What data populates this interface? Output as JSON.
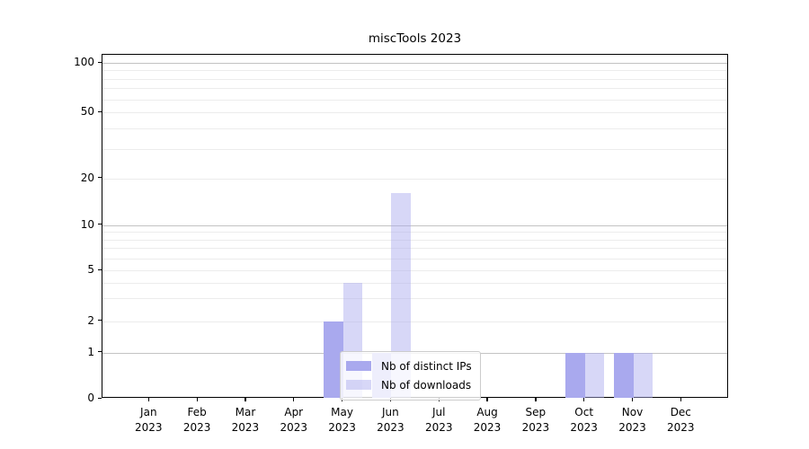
{
  "chart_data": {
    "type": "bar",
    "title": "miscTools 2023",
    "categories": [
      "Jan 2023",
      "Feb 2023",
      "Mar 2023",
      "Apr 2023",
      "May 2023",
      "Jun 2023",
      "Jul 2023",
      "Aug 2023",
      "Sep 2023",
      "Oct 2023",
      "Nov 2023",
      "Dec 2023"
    ],
    "series": [
      {
        "name": "Nb of distinct IPs",
        "color": "#a9a9ee",
        "values": [
          0,
          0,
          0,
          0,
          2,
          1,
          0,
          0,
          0,
          1,
          1,
          0
        ]
      },
      {
        "name": "Nb of downloads",
        "color": "rgba(169,169,238,0.47)",
        "values": [
          0,
          0,
          0,
          0,
          4,
          16,
          0,
          0,
          0,
          1,
          1,
          0
        ]
      }
    ],
    "xlabel": "",
    "ylabel": "",
    "yscale": "symlog",
    "yticks": [
      0,
      1,
      2,
      5,
      10,
      20,
      50,
      100
    ],
    "minor_gridline_values": [
      2,
      3,
      4,
      5,
      6,
      7,
      8,
      9,
      20,
      30,
      40,
      50,
      60,
      70,
      80,
      90
    ],
    "major_gridline_values": [
      1,
      10,
      100
    ],
    "ylim": [
      0,
      110
    ],
    "grid": "on",
    "legend_position": "lower center"
  }
}
